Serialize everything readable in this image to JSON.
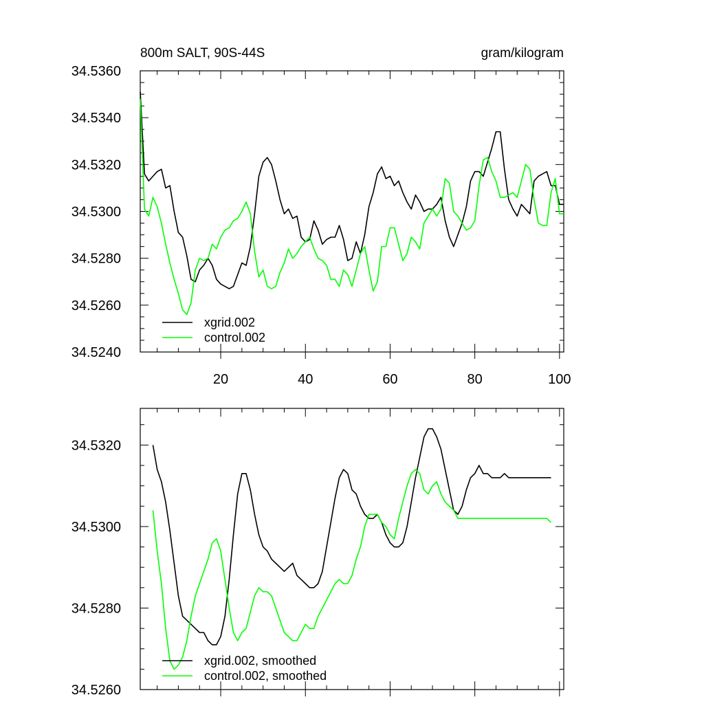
{
  "chart_data": [
    {
      "type": "line",
      "title": "800m SALT, 90S-44S",
      "units": "gram/kilogram",
      "xlim": [
        1,
        101
      ],
      "ylim": [
        34.524,
        34.536
      ],
      "x_ticks": [
        20,
        40,
        60,
        80,
        100
      ],
      "x_tick_labels": [
        "20",
        "40",
        "60",
        "80",
        "100"
      ],
      "y_ticks": [
        34.524,
        34.526,
        34.528,
        34.53,
        34.532,
        34.534,
        34.536
      ],
      "y_tick_labels": [
        "34.5240",
        "34.5260",
        "34.5280",
        "34.5300",
        "34.5320",
        "34.5340",
        "34.5360"
      ],
      "legend_position": "bottom-left",
      "series": [
        {
          "name": "xgrid.002",
          "color": "#000000",
          "x": [
            1,
            2,
            3,
            4,
            5,
            6,
            7,
            8,
            9,
            10,
            11,
            12,
            13,
            14,
            15,
            16,
            17,
            18,
            19,
            20,
            21,
            22,
            23,
            24,
            25,
            26,
            27,
            28,
            29,
            30,
            31,
            32,
            33,
            34,
            35,
            36,
            37,
            38,
            39,
            40,
            41,
            42,
            43,
            44,
            45,
            46,
            47,
            48,
            49,
            50,
            51,
            52,
            53,
            54,
            55,
            56,
            57,
            58,
            59,
            60,
            61,
            62,
            63,
            64,
            65,
            66,
            67,
            68,
            69,
            70,
            71,
            72,
            73,
            74,
            75,
            76,
            77,
            78,
            79,
            80,
            81,
            82,
            83,
            84,
            85,
            86,
            87,
            88,
            89,
            90,
            91,
            92,
            93,
            94,
            95,
            96,
            97,
            98,
            99,
            100,
            101
          ],
          "values": [
            34.5351,
            34.5316,
            34.5313,
            34.5315,
            34.5317,
            34.5318,
            34.531,
            34.5311,
            34.53,
            34.5291,
            34.5289,
            34.5281,
            34.5271,
            34.527,
            34.5275,
            34.5277,
            34.528,
            34.5277,
            34.5271,
            34.5269,
            34.5268,
            34.5267,
            34.5268,
            34.5273,
            34.5278,
            34.5277,
            34.5285,
            34.5299,
            34.5315,
            34.5321,
            34.5323,
            34.532,
            34.5313,
            34.5305,
            34.5299,
            34.5301,
            34.5297,
            34.5298,
            34.5289,
            34.5287,
            34.5288,
            34.5296,
            34.5292,
            34.5286,
            34.5288,
            34.5289,
            34.5289,
            34.5294,
            34.5288,
            34.5279,
            34.528,
            34.5287,
            34.5282,
            34.529,
            34.5302,
            34.5308,
            34.5316,
            34.5319,
            34.5314,
            34.5315,
            34.5311,
            34.5313,
            34.5308,
            34.5304,
            34.5301,
            34.5307,
            34.5304,
            34.53,
            34.5301,
            34.5301,
            34.5303,
            34.5306,
            34.5296,
            34.5289,
            34.5285,
            34.529,
            34.5295,
            34.5302,
            34.5313,
            34.5317,
            34.5317,
            34.5315,
            34.5321,
            34.5327,
            34.5334,
            34.5334,
            34.5318,
            34.5305,
            34.5301,
            34.5298,
            34.5303,
            34.5301,
            34.5299,
            34.5313,
            34.5315,
            34.5316,
            34.5317,
            34.5311,
            34.5311,
            34.5303,
            34.5303
          ]
        },
        {
          "name": "control.002",
          "color": "#00ff00",
          "x": [
            1,
            2,
            3,
            4,
            5,
            6,
            7,
            8,
            9,
            10,
            11,
            12,
            13,
            14,
            15,
            16,
            17,
            18,
            19,
            20,
            21,
            22,
            23,
            24,
            25,
            26,
            27,
            28,
            29,
            30,
            31,
            32,
            33,
            34,
            35,
            36,
            37,
            38,
            39,
            40,
            41,
            42,
            43,
            44,
            45,
            46,
            47,
            48,
            49,
            50,
            51,
            52,
            53,
            54,
            55,
            56,
            57,
            58,
            59,
            60,
            61,
            62,
            63,
            64,
            65,
            66,
            67,
            68,
            69,
            70,
            71,
            72,
            73,
            74,
            75,
            76,
            77,
            78,
            79,
            80,
            81,
            82,
            83,
            84,
            85,
            86,
            87,
            88,
            89,
            90,
            91,
            92,
            93,
            94,
            95,
            96,
            97,
            98,
            99,
            100,
            101
          ],
          "values": [
            34.5348,
            34.5301,
            34.5298,
            34.5306,
            34.5302,
            34.5295,
            34.5286,
            34.5278,
            34.5271,
            34.5265,
            34.5258,
            34.5256,
            34.5261,
            34.5275,
            34.528,
            34.5279,
            34.528,
            34.5286,
            34.5284,
            34.5289,
            34.5292,
            34.5293,
            34.5296,
            34.5297,
            34.53,
            34.5304,
            34.5299,
            34.5283,
            34.5272,
            34.5275,
            34.5268,
            34.5267,
            34.5268,
            34.5274,
            34.5278,
            34.5284,
            34.528,
            34.5282,
            34.5285,
            34.5287,
            34.5289,
            34.5284,
            34.528,
            34.5279,
            34.5277,
            34.5271,
            34.5271,
            34.5268,
            34.5275,
            34.5273,
            34.5268,
            34.5275,
            34.5282,
            34.5285,
            34.5275,
            34.5266,
            34.527,
            34.5285,
            34.5285,
            34.5293,
            34.5293,
            34.5286,
            34.5279,
            34.5282,
            34.5289,
            34.5287,
            34.5284,
            34.5295,
            34.5298,
            34.5301,
            34.5298,
            34.5301,
            34.5314,
            34.5312,
            34.53,
            34.5298,
            34.5295,
            34.5292,
            34.5293,
            34.5296,
            34.5311,
            34.5322,
            34.5323,
            34.5317,
            34.5313,
            34.5306,
            34.5306,
            34.5307,
            34.5308,
            34.5306,
            34.5313,
            34.532,
            34.5318,
            34.5305,
            34.5295,
            34.5294,
            34.5294,
            34.5308,
            34.5314,
            34.5299,
            34.5299
          ]
        }
      ]
    },
    {
      "type": "line",
      "title": "",
      "xlim": [
        1,
        101
      ],
      "ylim": [
        34.526,
        34.5329
      ],
      "x_ticks": [
        20,
        40,
        60,
        80,
        100
      ],
      "y_ticks": [
        34.526,
        34.528,
        34.53,
        34.532
      ],
      "y_tick_labels": [
        "34.5260",
        "34.5280",
        "34.5300",
        "34.5320"
      ],
      "legend_position": "bottom-left",
      "series": [
        {
          "name": "xgrid.002, smoothed",
          "color": "#000000",
          "x": [
            4,
            5,
            6,
            7,
            8,
            9,
            10,
            11,
            12,
            13,
            14,
            15,
            16,
            17,
            18,
            19,
            20,
            21,
            22,
            23,
            24,
            25,
            26,
            27,
            28,
            29,
            30,
            31,
            32,
            33,
            34,
            35,
            36,
            37,
            38,
            39,
            40,
            41,
            42,
            43,
            44,
            45,
            46,
            47,
            48,
            49,
            50,
            51,
            52,
            53,
            54,
            55,
            56,
            57,
            58,
            59,
            60,
            61,
            62,
            63,
            64,
            65,
            66,
            67,
            68,
            69,
            70,
            71,
            72,
            73,
            74,
            75,
            76,
            77,
            78,
            79,
            80,
            81,
            82,
            83,
            84,
            85,
            86,
            87,
            88,
            89,
            90,
            91,
            92,
            93,
            94,
            95,
            96,
            97,
            98
          ],
          "values": [
            34.532,
            34.5314,
            34.5311,
            34.5306,
            34.5299,
            34.5291,
            34.5283,
            34.5278,
            34.5277,
            34.5276,
            34.5275,
            34.5274,
            34.5274,
            34.5272,
            34.5271,
            34.5271,
            34.5273,
            34.5278,
            34.5287,
            34.5298,
            34.5308,
            34.5313,
            34.5313,
            34.5309,
            34.5303,
            34.5298,
            34.5295,
            34.5294,
            34.5292,
            34.5291,
            34.529,
            34.5289,
            34.529,
            34.5291,
            34.5288,
            34.5287,
            34.5286,
            34.5285,
            34.5285,
            34.5286,
            34.5289,
            34.5295,
            34.5301,
            34.5307,
            34.5312,
            34.5314,
            34.5313,
            34.5309,
            34.5308,
            34.5305,
            34.5303,
            34.5302,
            34.5302,
            34.5303,
            34.5301,
            34.5298,
            34.5296,
            34.5295,
            34.5295,
            34.5296,
            34.53,
            34.5306,
            34.5312,
            34.5317,
            34.5322,
            34.5324,
            34.5324,
            34.5322,
            34.5319,
            34.5314,
            34.5309,
            34.5304,
            34.5303,
            34.5305,
            34.5309,
            34.5312,
            34.5313,
            34.5315,
            34.5313,
            34.5313,
            34.5312,
            34.5312,
            34.5312,
            34.5313,
            34.5312,
            34.5312,
            34.5312,
            34.5312,
            34.5312,
            34.5312,
            34.5312,
            34.5312,
            34.5312,
            34.5312,
            34.5312
          ]
        },
        {
          "name": "control.002, smoothed",
          "color": "#00ff00",
          "x": [
            4,
            5,
            6,
            7,
            8,
            9,
            10,
            11,
            12,
            13,
            14,
            15,
            16,
            17,
            18,
            19,
            20,
            21,
            22,
            23,
            24,
            25,
            26,
            27,
            28,
            29,
            30,
            31,
            32,
            33,
            34,
            35,
            36,
            37,
            38,
            39,
            40,
            41,
            42,
            43,
            44,
            45,
            46,
            47,
            48,
            49,
            50,
            51,
            52,
            53,
            54,
            55,
            56,
            57,
            58,
            59,
            60,
            61,
            62,
            63,
            64,
            65,
            66,
            67,
            68,
            69,
            70,
            71,
            72,
            73,
            74,
            75,
            76,
            77,
            78,
            79,
            80,
            81,
            82,
            83,
            84,
            85,
            86,
            87,
            88,
            89,
            90,
            91,
            92,
            93,
            94,
            95,
            96,
            97,
            98
          ],
          "values": [
            34.5304,
            34.5294,
            34.5286,
            34.5275,
            34.5267,
            34.5265,
            34.5266,
            34.5268,
            34.5272,
            34.5278,
            34.5283,
            34.5286,
            34.5289,
            34.5292,
            34.5296,
            34.5297,
            34.5294,
            34.5287,
            34.528,
            34.5274,
            34.5272,
            34.5274,
            34.5275,
            34.5279,
            34.5283,
            34.5285,
            34.5284,
            34.5284,
            34.5283,
            34.528,
            34.5277,
            34.5274,
            34.5273,
            34.5272,
            34.5272,
            34.5274,
            34.5276,
            34.5275,
            34.5275,
            34.5278,
            34.528,
            34.5282,
            34.5284,
            34.5286,
            34.5287,
            34.5286,
            34.5286,
            34.5288,
            34.5292,
            34.5295,
            34.53,
            34.5303,
            34.5303,
            34.5303,
            34.5301,
            34.53,
            34.5298,
            34.5297,
            34.5302,
            34.5306,
            34.531,
            34.5313,
            34.5314,
            34.5313,
            34.5309,
            34.5308,
            34.531,
            34.5311,
            34.5308,
            34.5306,
            34.5305,
            34.5304,
            34.5302,
            34.5302,
            34.5302,
            34.5302,
            34.5302,
            34.5302,
            34.5302,
            34.5302,
            34.5302,
            34.5302,
            34.5302,
            34.5302,
            34.5302,
            34.5302,
            34.5302,
            34.5302,
            34.5302,
            34.5302,
            34.5302,
            34.5302,
            34.5302,
            34.5302,
            34.5301
          ]
        }
      ]
    }
  ]
}
